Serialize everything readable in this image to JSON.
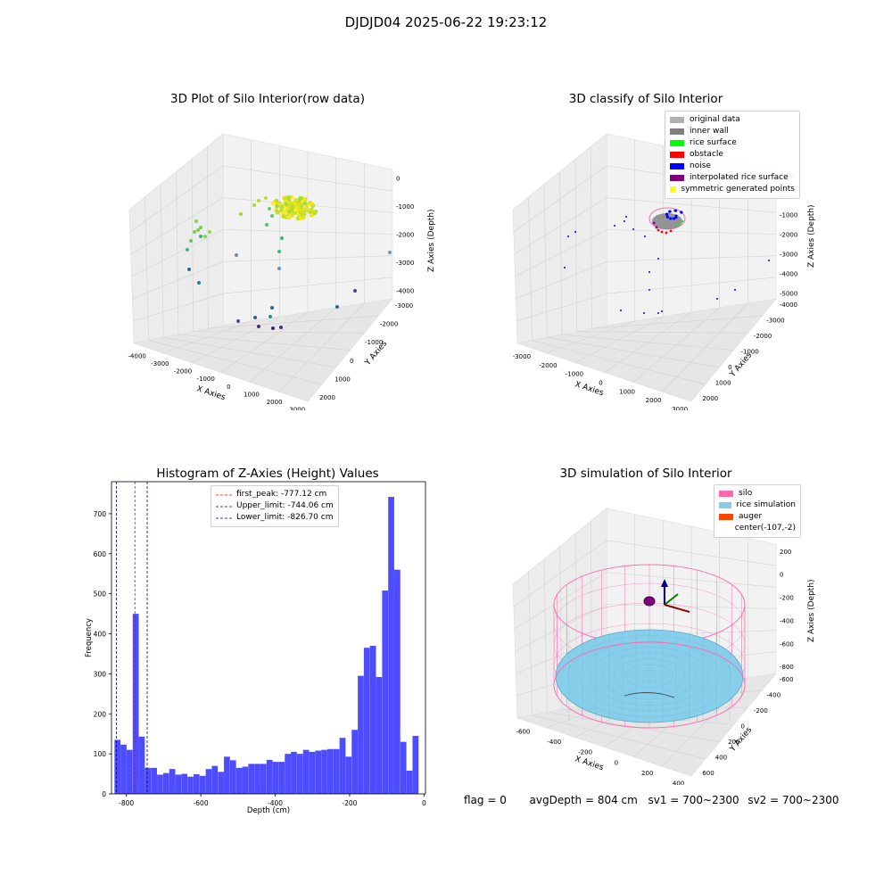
{
  "figure": {
    "title": "DJDJD04 2025-06-22 19:23:12",
    "status": {
      "flag": "flag = 0",
      "avg_depth": "avgDepth = 804 cm",
      "sv1": "sv1 = 700~2300",
      "sv2": "sv2 = 700~2300"
    }
  },
  "chart_data": [
    {
      "type": "scatter",
      "title": "3D Plot of Silo Interior(row data)",
      "xlabel": "X Axies",
      "ylabel": "Y Axies",
      "zlabel": "Z Axies (Depth)",
      "x_ticks": [
        "-4000",
        "-3000",
        "-2000",
        "-1000",
        "0",
        "1000",
        "2000",
        "3000"
      ],
      "y_ticks": [
        "-3000",
        "-2000",
        "-1000",
        "0",
        "1000",
        "2000"
      ],
      "z_ticks": [
        "0",
        "-1000",
        "-2000",
        "-3000",
        "-4000"
      ],
      "colors": {
        "low": "#440154",
        "mid": "#21918c",
        "high": "#fde725"
      }
    },
    {
      "type": "scatter",
      "title": "3D classify of Silo Interior",
      "zlabel": "Z Axies (Depth)",
      "xlabel": "X Axies",
      "ylabel": "Y Axies",
      "x_ticks": [
        "-3000",
        "-2000",
        "-1000",
        "0",
        "1000",
        "2000",
        "3000"
      ],
      "y_ticks": [
        "-4000",
        "-3000",
        "-2000",
        "-1000",
        "0",
        "1000",
        "2000"
      ],
      "z_ticks": [
        "1000",
        "0",
        "-1000",
        "-2000",
        "-3000",
        "-4000",
        "-5000"
      ],
      "legend": [
        {
          "label": "original data",
          "color": "#b0b0b0"
        },
        {
          "label": "inner wall",
          "color": "#808080"
        },
        {
          "label": "rice surface",
          "color": "#00ff00"
        },
        {
          "label": "obstacle",
          "color": "#ff0000"
        },
        {
          "label": "noise",
          "color": "#0000ff"
        },
        {
          "label": "interpolated rice surface",
          "color": "#800080"
        },
        {
          "label": "symmetric generated points",
          "color": "#ffff00"
        }
      ]
    },
    {
      "type": "bar",
      "title": "Histogram of Z-Axies (Height) Values",
      "xlabel": "Depth (cm)",
      "ylabel": "Frequency",
      "xlim": [
        -840,
        4
      ],
      "ylim": [
        0,
        780
      ],
      "x_ticks": [
        -800,
        -600,
        -400,
        -200,
        0
      ],
      "y_ticks": [
        0,
        100,
        200,
        300,
        400,
        500,
        600,
        700
      ],
      "bar_color": "#4d4dff",
      "bin_start": -832,
      "bin_width": 16.35,
      "values": [
        135,
        123,
        110,
        450,
        143,
        65,
        65,
        48,
        52,
        62,
        48,
        50,
        43,
        49,
        45,
        62,
        70,
        55,
        93,
        84,
        65,
        68,
        75,
        75,
        75,
        85,
        80,
        80,
        100,
        105,
        100,
        110,
        105,
        108,
        110,
        112,
        112,
        140,
        93,
        160,
        295,
        365,
        370,
        292,
        508,
        742,
        560,
        130,
        58,
        145
      ],
      "lines": [
        {
          "label": "first_peak: -777.12 cm",
          "x": -777.12,
          "color": "#ff0000"
        },
        {
          "label": "Upper_limit: -744.06 cm",
          "x": -744.06,
          "color": "#00008b"
        },
        {
          "label": "Lower_limit: -826.70 cm",
          "x": -826.7,
          "color": "#00008b"
        }
      ]
    },
    {
      "type": "surface",
      "title": "3D simulation of Silo Interior",
      "xlabel": "X Axies",
      "ylabel": "Y Axies",
      "zlabel": "Z Axies (Depth)",
      "x_ticks": [
        "-600",
        "-400",
        "-200",
        "0",
        "200",
        "400"
      ],
      "y_ticks": [
        "-600",
        "-400",
        "-200",
        "0",
        "200",
        "400",
        "600"
      ],
      "z_ticks": [
        "200",
        "0",
        "-200",
        "-400",
        "-600",
        "-800"
      ],
      "legend": [
        {
          "label": "silo",
          "color": "#ff69b4"
        },
        {
          "label": "rice simulation",
          "color": "#87ceeb"
        },
        {
          "label": "auger",
          "color": "#ff4500"
        },
        {
          "label": "center(-107,-2)",
          "color": ""
        }
      ]
    }
  ]
}
